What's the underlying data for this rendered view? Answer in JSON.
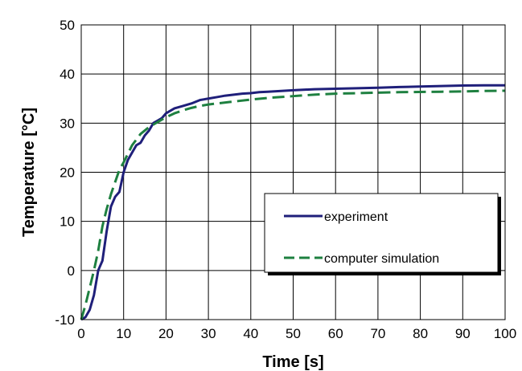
{
  "chart_data": {
    "type": "line",
    "title": "",
    "xlabel": "Time [s]",
    "ylabel": "Temperature [°C]",
    "xlim": [
      0,
      100
    ],
    "ylim": [
      -10,
      50
    ],
    "x_ticks": [
      0,
      10,
      20,
      30,
      40,
      50,
      60,
      70,
      80,
      90,
      100
    ],
    "y_ticks": [
      -10,
      0,
      10,
      20,
      30,
      40,
      50
    ],
    "grid": true,
    "legend_position": "center-right",
    "series": [
      {
        "name": "experiment",
        "color": "#1f1f7a",
        "style": "solid",
        "x": [
          0,
          1,
          2,
          3,
          4,
          5,
          6,
          7,
          8,
          9,
          10,
          11,
          12,
          13,
          14,
          15,
          16,
          17,
          18,
          19,
          20,
          22,
          24,
          26,
          28,
          30,
          32,
          34,
          36,
          38,
          40,
          42,
          44,
          46,
          48,
          50,
          55,
          60,
          65,
          70,
          75,
          80,
          85,
          90,
          95,
          100
        ],
        "y": [
          -10,
          -9.5,
          -8,
          -5,
          0,
          2,
          8,
          13,
          15,
          16,
          20,
          22.5,
          24,
          25.5,
          26,
          27.5,
          28.5,
          30,
          30.5,
          31,
          32,
          33,
          33.5,
          34,
          34.7,
          35,
          35.3,
          35.6,
          35.8,
          36,
          36.1,
          36.3,
          36.4,
          36.5,
          36.6,
          36.7,
          36.9,
          37,
          37.1,
          37.2,
          37.35,
          37.45,
          37.55,
          37.65,
          37.7,
          37.7
        ]
      },
      {
        "name": "computer simulation",
        "color": "#1e8040",
        "style": "dashed",
        "x": [
          0,
          1,
          2,
          3,
          4,
          5,
          6,
          7,
          8,
          9,
          10,
          12,
          14,
          16,
          18,
          20,
          22,
          24,
          26,
          28,
          30,
          35,
          40,
          45,
          50,
          55,
          60,
          65,
          70,
          75,
          80,
          85,
          90,
          95,
          100
        ],
        "y": [
          -10,
          -7,
          -3.5,
          0,
          4,
          9,
          12.5,
          15.5,
          18,
          20.5,
          22,
          25.5,
          27.8,
          29.2,
          30.2,
          31.2,
          32,
          32.6,
          33.1,
          33.5,
          33.8,
          34.3,
          34.8,
          35.2,
          35.5,
          35.8,
          36,
          36.1,
          36.2,
          36.3,
          36.35,
          36.4,
          36.45,
          36.55,
          36.6
        ]
      }
    ]
  }
}
